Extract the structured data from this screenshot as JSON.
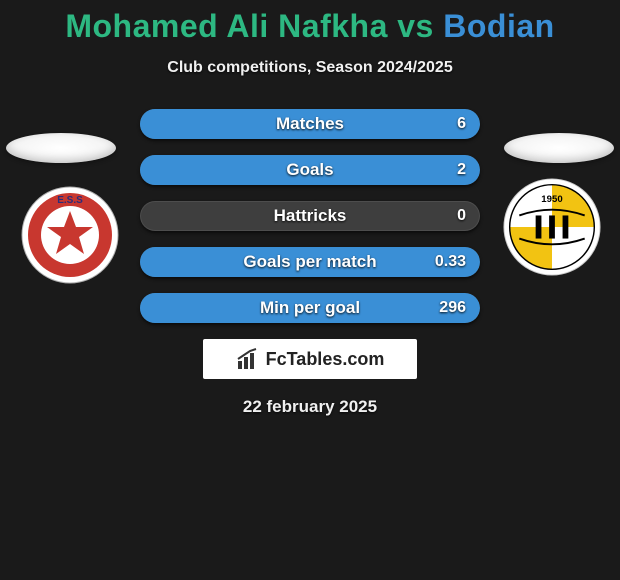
{
  "title": {
    "player1": "Mohamed Ali Nafkha",
    "vs": "vs",
    "player2": "Bodian",
    "p1_color": "#2db882",
    "p2_color": "#3a8fd6"
  },
  "subtitle": "Club competitions, Season 2024/2025",
  "stats": {
    "bar_bg": "#3e3e3e",
    "p1_fill": "#2db882",
    "p2_fill": "#3a8fd6",
    "rows": [
      {
        "label": "Matches",
        "left": "",
        "right": "6",
        "left_pct": 0,
        "right_pct": 100
      },
      {
        "label": "Goals",
        "left": "",
        "right": "2",
        "left_pct": 0,
        "right_pct": 100
      },
      {
        "label": "Hattricks",
        "left": "",
        "right": "0",
        "left_pct": 0,
        "right_pct": 0
      },
      {
        "label": "Goals per match",
        "left": "",
        "right": "0.33",
        "left_pct": 0,
        "right_pct": 100
      },
      {
        "label": "Min per goal",
        "left": "",
        "right": "296",
        "left_pct": 0,
        "right_pct": 100
      }
    ]
  },
  "brand": "FcTables.com",
  "date": "22 february 2025",
  "clubs": {
    "left": {
      "name": "ess-badge",
      "ring_color": "#c8372f",
      "inner_color": "#ffffff",
      "star_color": "#c8372f",
      "text": "E.S.S"
    },
    "right": {
      "name": "esm-badge",
      "bg_color": "#ffffff",
      "accent_color": "#f2c312",
      "stripe_color": "#000000",
      "year": "1950"
    }
  },
  "colors": {
    "page_bg": "#1a1a1a",
    "text": "#f0f0f0"
  }
}
